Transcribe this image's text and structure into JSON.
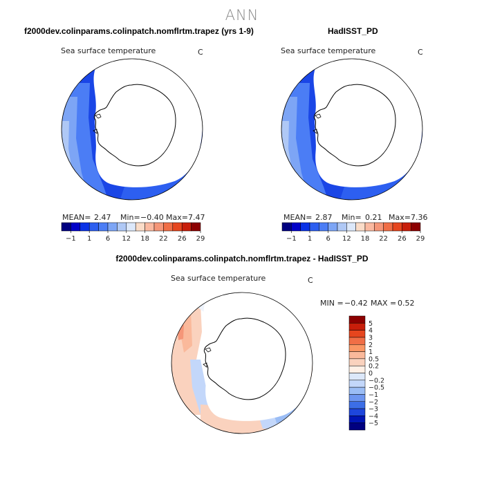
{
  "suptitle": "ANN",
  "chart_data": [
    {
      "type": "heatmap",
      "projection": "south-polar-stereographic",
      "title": "f2000dev.colinparams.colinpatch.nomflrtm.trapez (yrs 1-9)",
      "subtitle": "Sea surface temperature",
      "units": "C",
      "stats": {
        "mean_label": "MEAN=",
        "mean": "2.47",
        "min_label": "Min=",
        "min": "−0.40",
        "max_label": "Max=",
        "max": "7.47"
      },
      "colorbar": {
        "orientation": "horizontal",
        "colors": [
          "#000080",
          "#0000c8",
          "#0a32e6",
          "#2d5ff0",
          "#4b7df5",
          "#7da5f5",
          "#afc8f5",
          "#dce8fa",
          "#fadcc8",
          "#fab9a0",
          "#f59678",
          "#f06e46",
          "#e6461e",
          "#c81e0a",
          "#8c0000"
        ],
        "tick_labels": [
          "−1",
          "1",
          "6",
          "12",
          "18",
          "22",
          "26",
          "29"
        ]
      }
    },
    {
      "type": "heatmap",
      "projection": "south-polar-stereographic",
      "title": "HadISST_PD",
      "subtitle": "Sea surface temperature",
      "units": "C",
      "stats": {
        "mean_label": "MEAN=",
        "mean": "2.87",
        "min_label": "Min=",
        "min": "0.21",
        "max_label": "Max=",
        "max": "7.36"
      },
      "colorbar": {
        "orientation": "horizontal",
        "colors": [
          "#000080",
          "#0000c8",
          "#0a32e6",
          "#2d5ff0",
          "#4b7df5",
          "#7da5f5",
          "#afc8f5",
          "#dce8fa",
          "#fadcc8",
          "#fab9a0",
          "#f59678",
          "#f06e46",
          "#e6461e",
          "#c81e0a",
          "#8c0000"
        ],
        "tick_labels": [
          "−1",
          "1",
          "6",
          "12",
          "18",
          "22",
          "26",
          "29"
        ]
      }
    },
    {
      "type": "heatmap",
      "projection": "south-polar-stereographic",
      "title": "f2000dev.colinparams.colinpatch.nomflrtm.trapez - HadISST_PD",
      "subtitle": "Sea surface temperature",
      "units": "C",
      "stats": {
        "min_label": "MIN =",
        "min": "−0.42",
        "max_label": "MAX =",
        "max": "0.52"
      },
      "colorbar": {
        "orientation": "vertical",
        "colors_top_to_bottom": [
          "#8c0000",
          "#c81e0a",
          "#e6461e",
          "#f06e46",
          "#fa9664",
          "#fab99b",
          "#fad2be",
          "#fff0e6",
          "#dce8fa",
          "#c3d7fa",
          "#9bbdf5",
          "#6e96f0",
          "#3c6ee6",
          "#1e46dc",
          "#0014b4",
          "#000080"
        ],
        "tick_labels_top_to_bottom": [
          "5",
          "4",
          "3",
          "2",
          "1",
          "0.5",
          "0.2",
          "0",
          "−0.2",
          "−0.5",
          "−1",
          "−2",
          "−3",
          "−4",
          "−5"
        ]
      }
    }
  ]
}
